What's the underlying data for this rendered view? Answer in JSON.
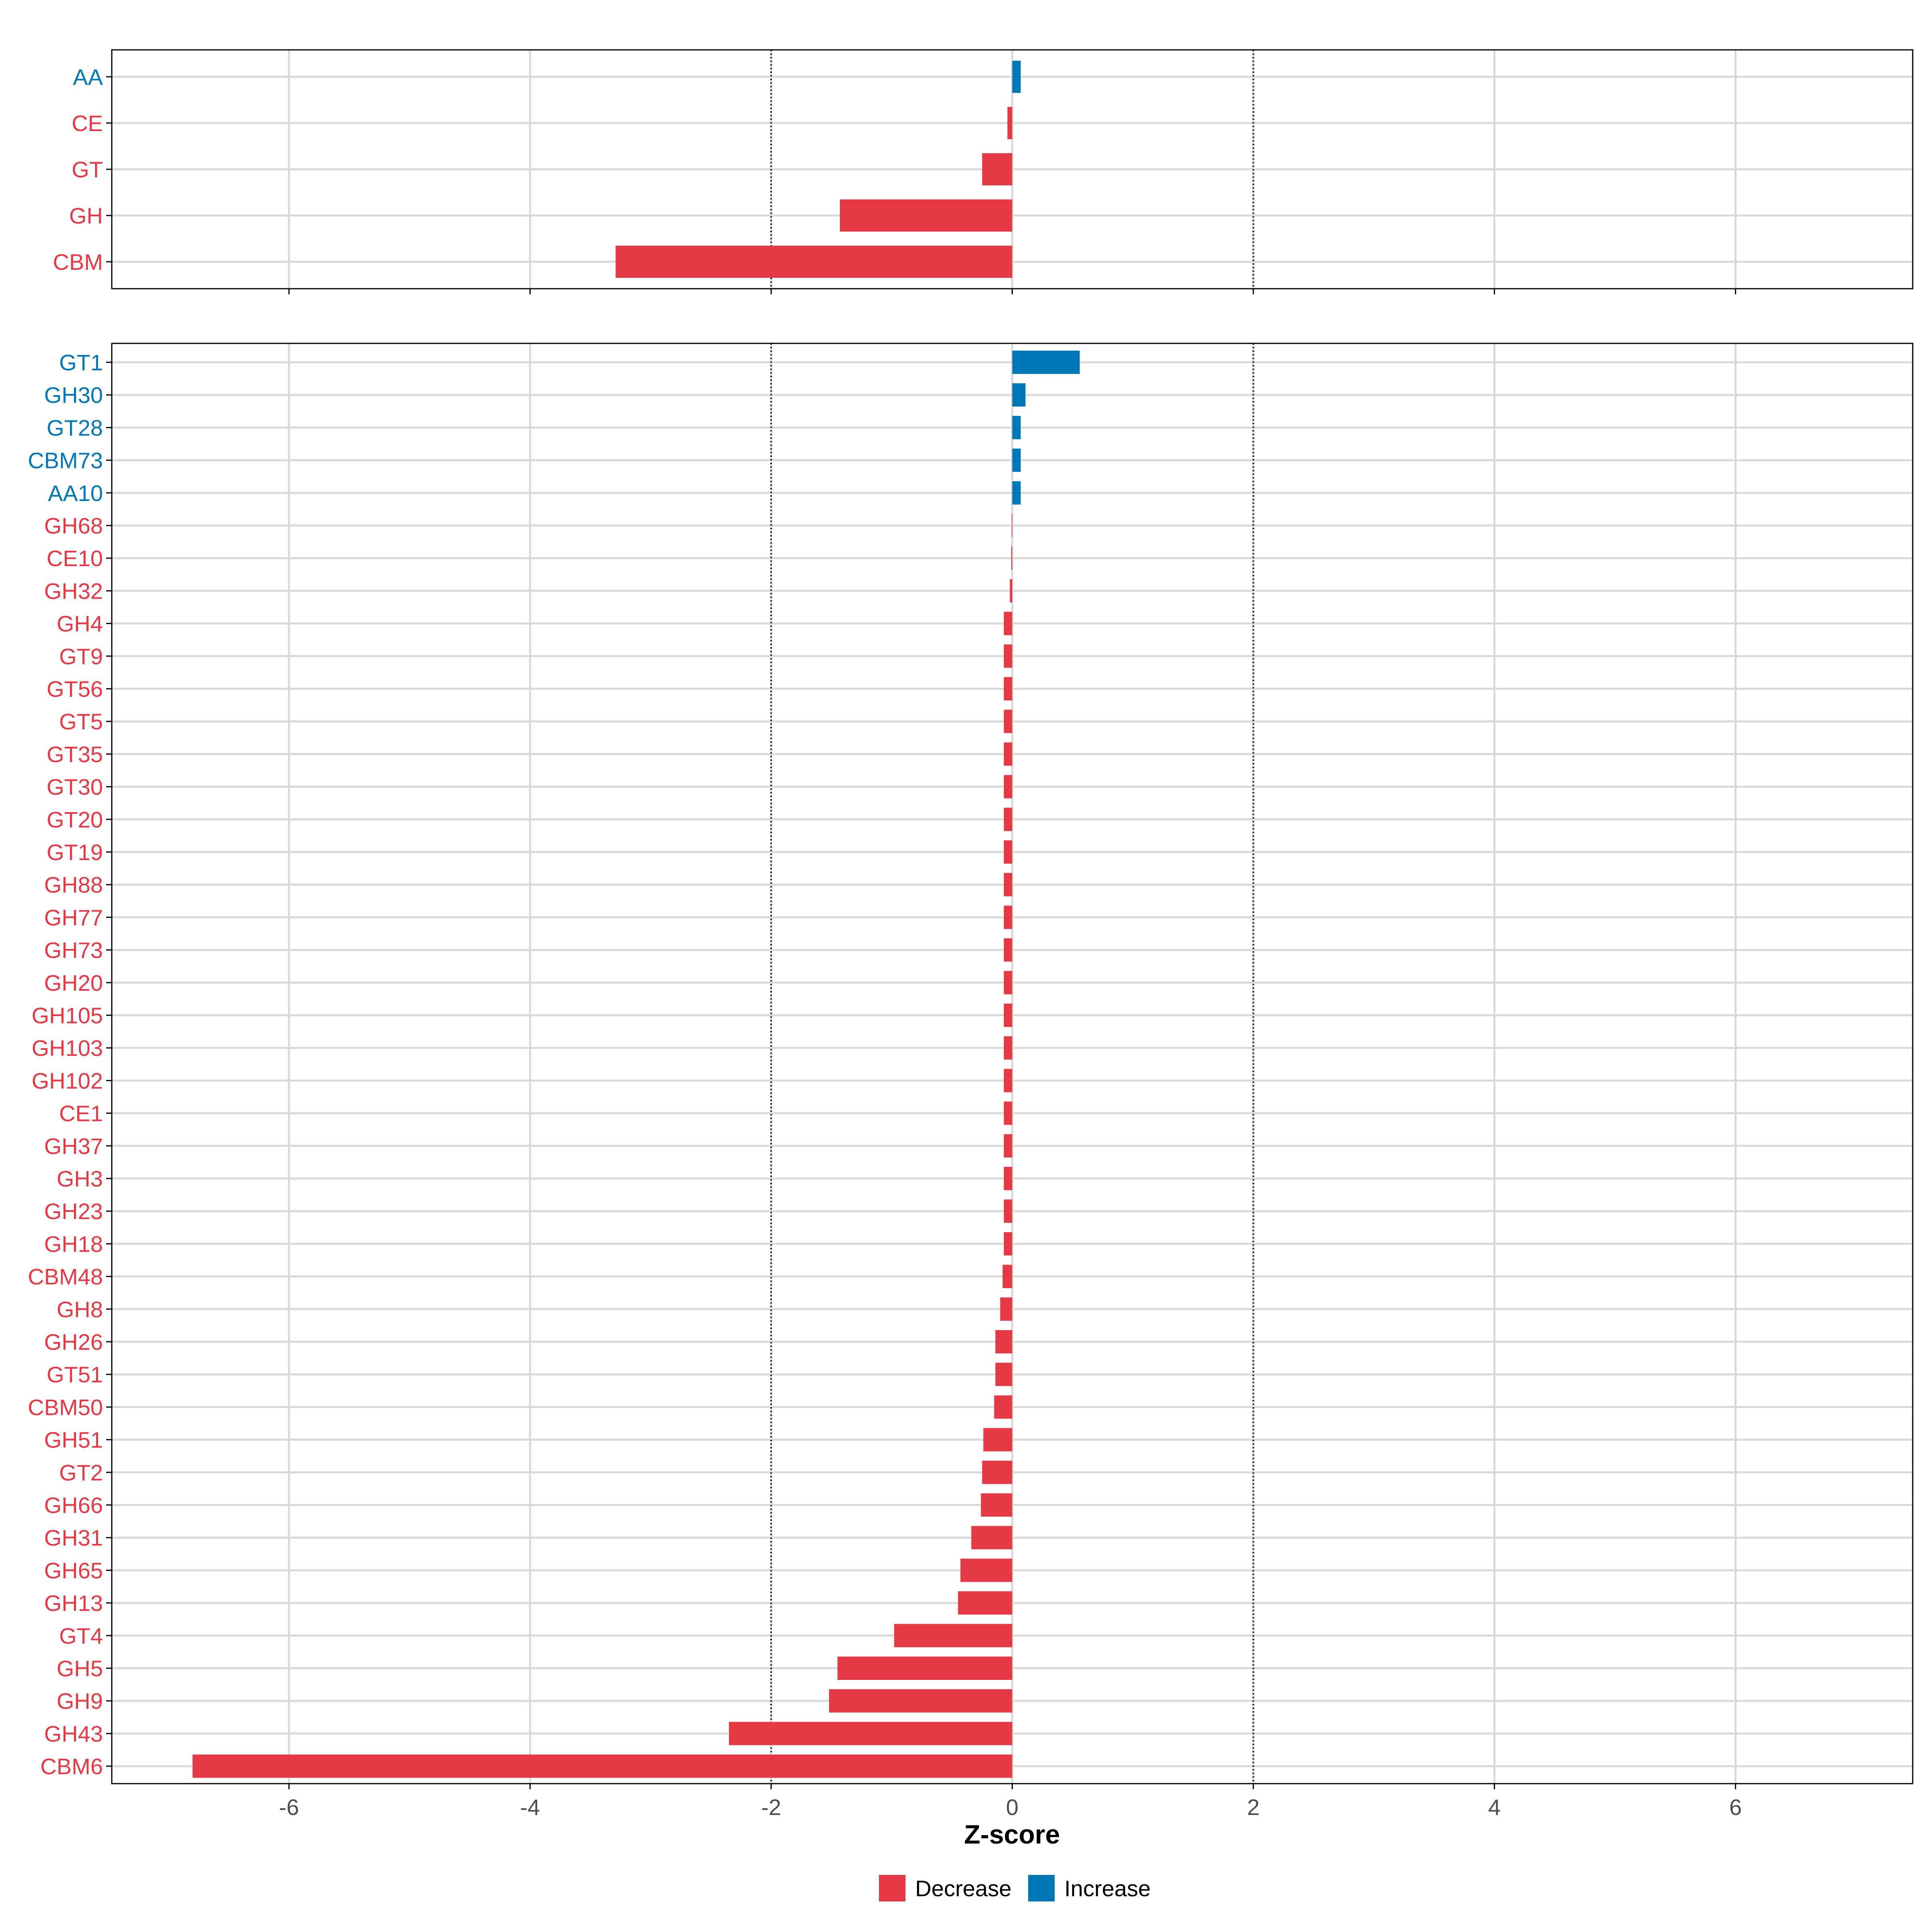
{
  "chart_data": [
    {
      "type": "bar",
      "orientation": "horizontal",
      "panel": "top",
      "categories": [
        "AA",
        "CE",
        "GT",
        "GH",
        "CBM"
      ],
      "values": [
        0.07,
        -0.04,
        -0.25,
        -1.43,
        -3.29
      ],
      "directions": [
        "Increase",
        "Decrease",
        "Decrease",
        "Decrease",
        "Decrease"
      ],
      "xlim": [
        -7.47,
        7.47
      ],
      "reference_lines": [
        -2,
        2
      ],
      "grid": true
    },
    {
      "type": "bar",
      "orientation": "horizontal",
      "panel": "bottom",
      "categories": [
        "GT1",
        "GH30",
        "GT28",
        "CBM73",
        "AA10",
        "GH68",
        "CE10",
        "GH32",
        "GH4",
        "GT9",
        "GT56",
        "GT5",
        "GT35",
        "GT30",
        "GT20",
        "GT19",
        "GH88",
        "GH77",
        "GH73",
        "GH20",
        "GH105",
        "GH103",
        "GH102",
        "CE1",
        "GH37",
        "GH3",
        "GH23",
        "GH18",
        "CBM48",
        "GH8",
        "GH26",
        "GT51",
        "CBM50",
        "GH51",
        "GT2",
        "GH66",
        "GH31",
        "GH65",
        "GH13",
        "GT4",
        "GH5",
        "GH9",
        "GH43",
        "CBM6"
      ],
      "values": [
        0.56,
        0.11,
        0.07,
        0.07,
        0.07,
        -0.005,
        -0.008,
        -0.02,
        -0.07,
        -0.07,
        -0.07,
        -0.07,
        -0.07,
        -0.07,
        -0.07,
        -0.07,
        -0.07,
        -0.07,
        -0.07,
        -0.07,
        -0.07,
        -0.07,
        -0.07,
        -0.07,
        -0.07,
        -0.07,
        -0.07,
        -0.07,
        -0.08,
        -0.1,
        -0.14,
        -0.14,
        -0.15,
        -0.24,
        -0.25,
        -0.26,
        -0.34,
        -0.43,
        -0.45,
        -0.98,
        -1.45,
        -1.52,
        -2.35,
        -6.8
      ],
      "directions": [
        "Increase",
        "Increase",
        "Increase",
        "Increase",
        "Increase",
        "Decrease",
        "Decrease",
        "Decrease",
        "Decrease",
        "Decrease",
        "Decrease",
        "Decrease",
        "Decrease",
        "Decrease",
        "Decrease",
        "Decrease",
        "Decrease",
        "Decrease",
        "Decrease",
        "Decrease",
        "Decrease",
        "Decrease",
        "Decrease",
        "Decrease",
        "Decrease",
        "Decrease",
        "Decrease",
        "Decrease",
        "Decrease",
        "Decrease",
        "Decrease",
        "Decrease",
        "Decrease",
        "Decrease",
        "Decrease",
        "Decrease",
        "Decrease",
        "Decrease",
        "Decrease",
        "Decrease",
        "Decrease",
        "Decrease",
        "Decrease",
        "Decrease"
      ],
      "xlim": [
        -7.47,
        7.47
      ],
      "x_ticks": [
        -6,
        -4,
        -2,
        0,
        2,
        4,
        6
      ],
      "x_tick_labels": [
        "-6",
        "-4",
        "-2",
        "0",
        "2",
        "4",
        "6"
      ],
      "xlabel": "Z-score",
      "reference_lines": [
        -2,
        2
      ],
      "grid": true
    }
  ],
  "legend": {
    "placement": "bottom",
    "items": [
      {
        "label": "Decrease",
        "color": "#e63946"
      },
      {
        "label": "Increase",
        "color": "#0077b6"
      }
    ]
  },
  "colors": {
    "Decrease": "#e63946",
    "Increase": "#0077b6",
    "grid": "#d9d9d9",
    "axis": "#000000",
    "tick_text": "#4d4d4d"
  }
}
